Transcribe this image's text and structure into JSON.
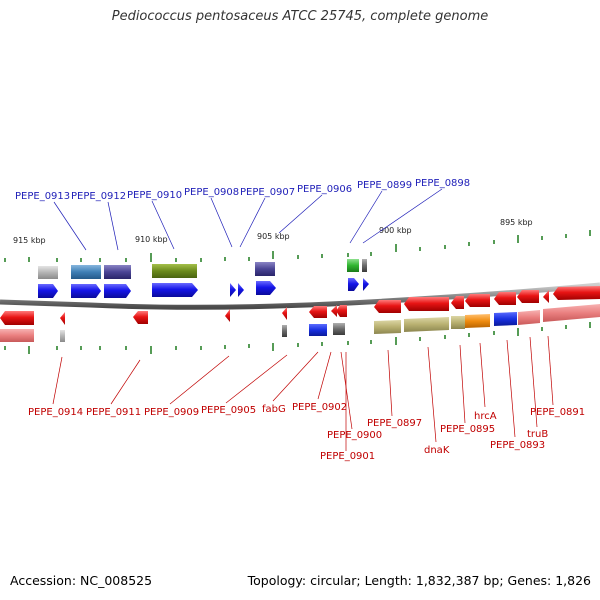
{
  "header": {
    "title": "Pediococcus pentosaceus ATCC 25745, complete genome"
  },
  "footer": {
    "accession": "Accession: NC_008525",
    "topology": "Topology: circular; Length: 1,832,387 bp; Genes: 1,826"
  },
  "scale_labels": [
    "915 kbp",
    "910 kbp",
    "905 kbp",
    "900 kbp",
    "895 kbp"
  ],
  "top_gene_labels": [
    "PEPE_0913",
    "PEPE_0912",
    "PEPE_0910",
    "PEPE_0908",
    "PEPE_0907",
    "PEPE_0906",
    "PEPE_0899",
    "PEPE_0898"
  ],
  "bottom_gene_labels": [
    "PEPE_0914",
    "PEPE_0911",
    "PEPE_0909",
    "PEPE_0905",
    "fabG",
    "PEPE_0902",
    "PEPE_0900",
    "PEPE_0901",
    "PEPE_0897",
    "dnaK",
    "PEPE_0895",
    "hrcA",
    "PEPE_0893",
    "truB",
    "PEPE_0891"
  ],
  "colors": {
    "forward_strand": "#1515e0",
    "reverse_strand": "#e01010",
    "top_label": "#1f1fb8",
    "bottom_label": "#c00000",
    "tick": "#1e7a1e",
    "backbone": "#7a7a7a"
  }
}
